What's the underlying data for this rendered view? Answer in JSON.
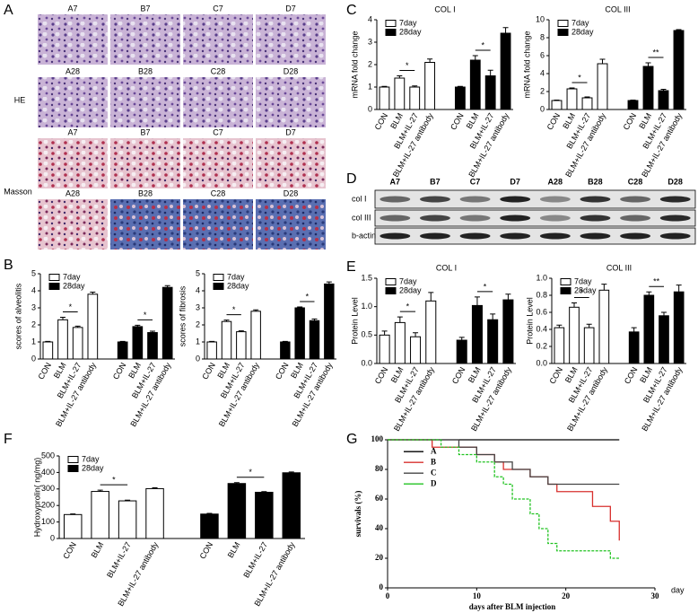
{
  "panel_letters": [
    "A",
    "B",
    "C",
    "D",
    "E",
    "F",
    "G"
  ],
  "histology": {
    "stains": [
      "HE",
      "Masson"
    ],
    "labels": [
      [
        "A7",
        "B7",
        "C7",
        "D7"
      ],
      [
        "A28",
        "B28",
        "C28",
        "D28"
      ],
      [
        "A7",
        "B7",
        "C7",
        "D7"
      ],
      [
        "A28",
        "B28",
        "C28",
        "D28"
      ]
    ]
  },
  "blot": {
    "columns": [
      "A7",
      "B7",
      "C7",
      "D7",
      "A28",
      "B28",
      "C28",
      "D28"
    ],
    "rows": [
      "col I",
      "col III",
      "b-actin"
    ]
  },
  "chart_data": [
    {
      "type": "bar",
      "ylabel": "scores of alveolitis",
      "categories": [
        "CON",
        "BLM",
        "BLM+IL-27",
        "BLM+IL-27 antibody",
        "CON",
        "BLM",
        "BLM+IL-27",
        "BLM+IL-27 antibody"
      ],
      "series": [
        {
          "name": "7day",
          "color": "#ffffff",
          "values": [
            1,
            2.3,
            1.85,
            3.8,
            null,
            null,
            null,
            null
          ],
          "errors": [
            0.03,
            0.15,
            0.08,
            0.12,
            null,
            null,
            null,
            null
          ]
        },
        {
          "name": "28day",
          "color": "#000000",
          "values": [
            null,
            null,
            null,
            null,
            1,
            1.9,
            1.55,
            4.2
          ],
          "errors": [
            null,
            null,
            null,
            null,
            0.03,
            0.08,
            0.08,
            0.1
          ]
        }
      ],
      "ylim": [
        0,
        5
      ],
      "yticks": [
        0,
        1,
        2,
        3,
        4,
        5
      ],
      "annotations": [
        "*",
        "*"
      ]
    },
    {
      "type": "bar",
      "ylabel": "scores of fibrosis",
      "categories": [
        "CON",
        "BLM",
        "BLM+IL-27",
        "BLM+IL-27 antibody",
        "CON",
        "BLM",
        "BLM+IL-27",
        "BLM+IL-27 antibody"
      ],
      "series": [
        {
          "name": "7day",
          "color": "#ffffff",
          "values": [
            1,
            2.2,
            1.6,
            2.8,
            null,
            null,
            null,
            null
          ],
          "errors": [
            0.03,
            0.08,
            0.05,
            0.08,
            null,
            null,
            null,
            null
          ]
        },
        {
          "name": "28day",
          "color": "#000000",
          "values": [
            null,
            null,
            null,
            null,
            1,
            3.0,
            2.25,
            4.4
          ],
          "errors": [
            null,
            null,
            null,
            null,
            0.03,
            0.05,
            0.1,
            0.12
          ]
        }
      ],
      "ylim": [
        0,
        5
      ],
      "yticks": [
        0,
        1,
        2,
        3,
        4,
        5
      ],
      "annotations": [
        "*",
        "*"
      ]
    },
    {
      "type": "bar",
      "title": "COL I",
      "ylabel": "mRNA fold change",
      "categories": [
        "CON",
        "BLM",
        "BLM+IL-27",
        "BLM+IL-27 antibody",
        "CON",
        "BLM",
        "BLM+IL-27",
        "BLM+IL-27 antibody"
      ],
      "series": [
        {
          "name": "7day",
          "color": "#ffffff",
          "values": [
            1,
            1.4,
            1.0,
            2.1,
            null,
            null,
            null,
            null
          ],
          "errors": [
            0.03,
            0.1,
            0.05,
            0.15,
            null,
            null,
            null,
            null
          ]
        },
        {
          "name": "28day",
          "color": "#000000",
          "values": [
            null,
            null,
            null,
            null,
            1,
            2.2,
            1.5,
            3.4
          ],
          "errors": [
            null,
            null,
            null,
            null,
            0.03,
            0.2,
            0.25,
            0.25
          ]
        }
      ],
      "ylim": [
        0,
        4
      ],
      "yticks": [
        0,
        1,
        2,
        3,
        4
      ],
      "annotations": [
        "*",
        "*"
      ]
    },
    {
      "type": "bar",
      "title": "COL III",
      "ylabel": "mRNA fold change",
      "categories": [
        "CON",
        "BLM",
        "BLM+IL-27",
        "BLM+IL-27 antibody",
        "CON",
        "BLM",
        "BLM+IL-27",
        "BLM+IL-27 antibody"
      ],
      "series": [
        {
          "name": "7day",
          "color": "#ffffff",
          "values": [
            1,
            2.3,
            1.3,
            5.1,
            null,
            null,
            null,
            null
          ],
          "errors": [
            0.05,
            0.1,
            0.1,
            0.5,
            null,
            null,
            null,
            null
          ]
        },
        {
          "name": "28day",
          "color": "#000000",
          "values": [
            null,
            null,
            null,
            null,
            1,
            4.8,
            2.1,
            8.8
          ],
          "errors": [
            null,
            null,
            null,
            null,
            0.05,
            0.4,
            0.15,
            0.1
          ]
        }
      ],
      "ylim": [
        0,
        10
      ],
      "yticks": [
        0,
        2,
        4,
        6,
        8,
        10
      ],
      "annotations": [
        "*",
        "**"
      ]
    },
    {
      "type": "bar",
      "title": "COL I",
      "ylabel": "Protein Level",
      "categories": [
        "CON",
        "BLM",
        "BLM+IL-27",
        "BLM+IL-27 antibody",
        "CON",
        "BLM",
        "BLM+IL-27",
        "BLM+IL-27 antibody"
      ],
      "series": [
        {
          "name": "7day",
          "color": "#ffffff",
          "values": [
            0.5,
            0.72,
            0.47,
            1.1,
            null,
            null,
            null,
            null
          ],
          "errors": [
            0.07,
            0.1,
            0.07,
            0.15,
            null,
            null,
            null,
            null
          ]
        },
        {
          "name": "28day",
          "color": "#000000",
          "values": [
            null,
            null,
            null,
            null,
            0.41,
            1.02,
            0.77,
            1.12
          ],
          "errors": [
            null,
            null,
            null,
            null,
            0.05,
            0.15,
            0.1,
            0.1
          ]
        }
      ],
      "ylim": [
        0,
        1.5
      ],
      "yticks": [
        {
          "value": 0,
          "label": "0.0"
        },
        0.5,
        {
          "value": 1,
          "label": "1.0"
        },
        1.5
      ],
      "annotations": [
        "*",
        "*"
      ]
    },
    {
      "type": "bar",
      "title": "COL III",
      "ylabel": "Protein Level",
      "categories": [
        "CON",
        "BLM",
        "BLM+IL-27",
        "BLM+IL-27 antibody",
        "CON",
        "BLM",
        "BLM+IL-27",
        "BLM+IL-27 antibody"
      ],
      "series": [
        {
          "name": "7day",
          "color": "#ffffff",
          "values": [
            0.42,
            0.66,
            0.42,
            0.86,
            null,
            null,
            null,
            null
          ],
          "errors": [
            0.03,
            0.05,
            0.04,
            0.07,
            null,
            null,
            null,
            null
          ]
        },
        {
          "name": "28day",
          "color": "#000000",
          "values": [
            null,
            null,
            null,
            null,
            0.37,
            0.8,
            0.56,
            0.84
          ],
          "errors": [
            null,
            null,
            null,
            null,
            0.05,
            0.04,
            0.04,
            0.08
          ]
        }
      ],
      "ylim": [
        0,
        1.0
      ],
      "yticks": [
        {
          "value": 0,
          "label": "0.0"
        },
        0.2,
        0.4,
        0.6,
        0.8,
        {
          "value": 1,
          "label": "1.0"
        }
      ],
      "annotations": [
        "*",
        "**"
      ]
    },
    {
      "type": "bar",
      "ylabel": "Hydroxyprolin( ng/mg)",
      "categories": [
        "CON",
        "BLM",
        "BLM+IL-27",
        "BLM+IL-27 antibody",
        "CON",
        "BLM",
        "BLM+IL-27",
        "BLM+IL-27 antibody"
      ],
      "series": [
        {
          "name": "7day",
          "color": "#ffffff",
          "values": [
            145,
            285,
            228,
            302,
            null,
            null,
            null,
            null
          ],
          "errors": [
            4,
            8,
            4,
            5,
            null,
            null,
            null,
            null
          ]
        },
        {
          "name": "28day",
          "color": "#000000",
          "values": [
            null,
            null,
            null,
            null,
            148,
            333,
            280,
            398
          ],
          "errors": [
            null,
            null,
            null,
            null,
            4,
            5,
            4,
            5
          ]
        }
      ],
      "ylim": [
        0,
        500
      ],
      "yticks": [
        0,
        100,
        200,
        300,
        400,
        500
      ],
      "annotations": [
        "*",
        "*"
      ]
    },
    {
      "type": "line",
      "ylabel": "survivals (%)",
      "xlabel": "days after BLM injection",
      "xunit": "day",
      "series": [
        {
          "name": "A",
          "color": "#000000",
          "x": [
            0,
            26
          ],
          "values": [
            100,
            100
          ]
        },
        {
          "name": "B",
          "color": "#d8302e",
          "x": [
            0,
            5,
            5,
            10,
            10,
            12,
            12,
            13,
            13,
            16,
            16,
            18,
            18,
            19,
            19,
            23,
            23,
            25,
            25,
            26,
            26
          ],
          "values": [
            100,
            100,
            95,
            95,
            90,
            90,
            85,
            85,
            80,
            80,
            75,
            75,
            70,
            70,
            65,
            65,
            55,
            55,
            45,
            45,
            32
          ]
        },
        {
          "name": "C",
          "color": "#444444",
          "x": [
            0,
            8,
            8,
            10,
            10,
            12,
            12,
            14,
            14,
            16,
            16,
            18,
            18,
            26
          ],
          "values": [
            100,
            100,
            95,
            95,
            90,
            90,
            85,
            85,
            80,
            80,
            75,
            75,
            70,
            70
          ]
        },
        {
          "name": "D",
          "color": "#22c322",
          "x": [
            0,
            6,
            6,
            8,
            8,
            10,
            10,
            12,
            12,
            13,
            13,
            14,
            14,
            16,
            16,
            17,
            17,
            18,
            18,
            19,
            19,
            25,
            25,
            26
          ],
          "values": [
            100,
            100,
            95,
            95,
            90,
            90,
            85,
            85,
            75,
            75,
            70,
            70,
            60,
            60,
            50,
            50,
            40,
            40,
            30,
            30,
            25,
            25,
            20,
            20
          ]
        }
      ],
      "xlim": [
        0,
        30
      ],
      "xticks": [
        0,
        10,
        20,
        30
      ],
      "ylim": [
        0,
        100
      ],
      "yticks": [
        0,
        20,
        40,
        60,
        80,
        100
      ]
    }
  ]
}
